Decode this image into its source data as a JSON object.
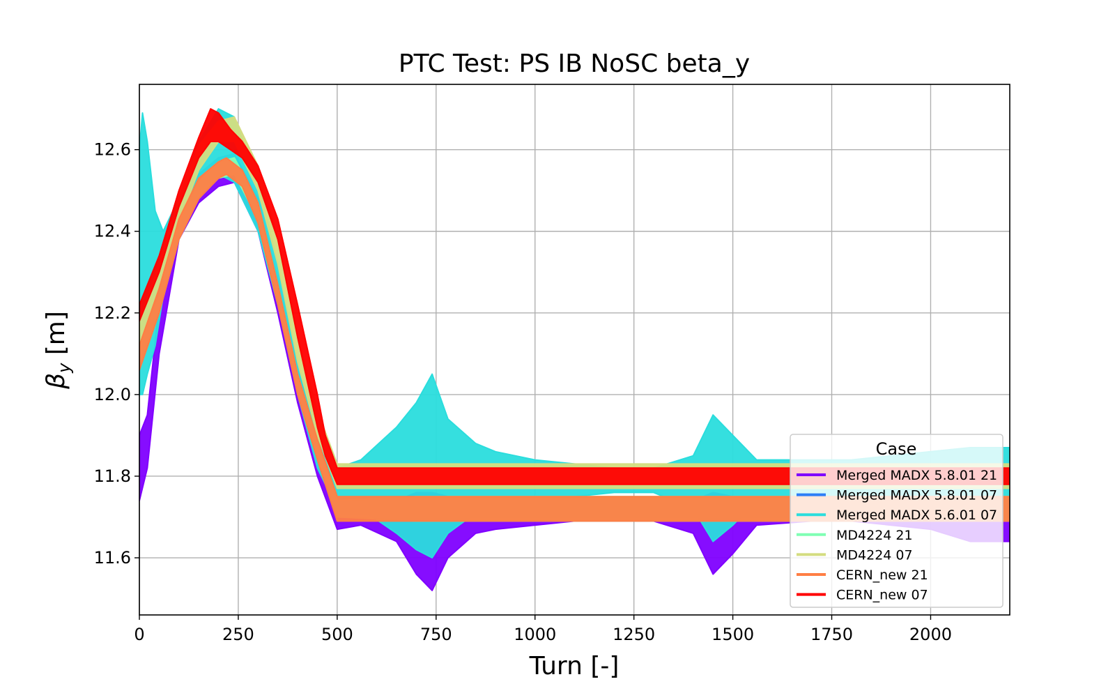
{
  "chart_data": {
    "type": "line",
    "title": "PTC Test: PS IB NoSC beta_y",
    "xlabel": "Turn [-]",
    "ylabel_main": "β",
    "ylabel_sub": "y",
    "ylabel_unit": " [m]",
    "xlim": [
      0,
      2200
    ],
    "ylim": [
      11.46,
      12.76
    ],
    "xticks": [
      0,
      250,
      500,
      750,
      1000,
      1250,
      1500,
      1750,
      2000
    ],
    "xtick_labels": [
      "0",
      "250",
      "500",
      "750",
      "1000",
      "1250",
      "1500",
      "1750",
      "2000"
    ],
    "yticks": [
      11.6,
      11.8,
      12.0,
      12.2,
      12.4,
      12.6
    ],
    "ytick_labels": [
      "11.6",
      "11.8",
      "12.0",
      "12.2",
      "12.4",
      "12.6"
    ],
    "grid": true,
    "legend": {
      "title": "Case",
      "placement": "lower-right"
    },
    "series": [
      {
        "name": "Merged MADX 5.8.01 21",
        "color": "#8000ff",
        "x": [
          0,
          20,
          50,
          100,
          150,
          200,
          240,
          300,
          350,
          400,
          450,
          500,
          560,
          650,
          700,
          740,
          780,
          850,
          900,
          1000,
          1100,
          1200,
          1300,
          1400,
          1450,
          1500,
          1560,
          1700,
          1800,
          1900,
          2000,
          2100,
          2200
        ],
        "lower": [
          11.74,
          11.82,
          12.1,
          12.38,
          12.47,
          12.51,
          12.52,
          12.4,
          12.2,
          11.98,
          11.8,
          11.67,
          11.68,
          11.64,
          11.56,
          11.52,
          11.6,
          11.66,
          11.67,
          11.68,
          11.69,
          11.69,
          11.69,
          11.66,
          11.56,
          11.61,
          11.68,
          11.69,
          11.69,
          11.68,
          11.67,
          11.64,
          11.64
        ],
        "upper": [
          11.9,
          11.95,
          12.22,
          12.44,
          12.52,
          12.56,
          12.58,
          12.46,
          12.26,
          12.04,
          11.86,
          11.72,
          11.73,
          11.74,
          11.76,
          11.76,
          11.75,
          11.74,
          11.73,
          11.73,
          11.73,
          11.73,
          11.73,
          11.74,
          11.76,
          11.75,
          11.73,
          11.73,
          11.73,
          11.72,
          11.72,
          11.72,
          11.72
        ]
      },
      {
        "name": "Merged MADX 5.8.01 07",
        "color": "#2c7ef7",
        "x": [
          0,
          50,
          100,
          150,
          200,
          240,
          300,
          350,
          400,
          450,
          500,
          700,
          1000,
          1300,
          1600,
          1900,
          2200
        ],
        "lower": [
          12.08,
          12.22,
          12.4,
          12.5,
          12.54,
          12.55,
          12.44,
          12.24,
          12.02,
          11.86,
          11.71,
          11.7,
          11.7,
          11.7,
          11.7,
          11.7,
          11.7
        ],
        "upper": [
          12.12,
          12.26,
          12.44,
          12.54,
          12.58,
          12.59,
          12.48,
          12.28,
          12.06,
          11.9,
          11.75,
          11.74,
          11.74,
          11.74,
          11.74,
          11.74,
          11.74
        ]
      },
      {
        "name": "Merged MADX 5.6.01 07",
        "color": "#2adddd",
        "x": [
          0,
          8,
          20,
          40,
          60,
          100,
          150,
          200,
          240,
          300,
          350,
          400,
          450,
          500,
          560,
          650,
          700,
          740,
          780,
          850,
          900,
          1000,
          1100,
          1200,
          1300,
          1400,
          1450,
          1500,
          1560,
          1700,
          1800,
          1900,
          2000,
          2100,
          2200
        ],
        "lower": [
          12.0,
          12.0,
          12.05,
          12.12,
          12.24,
          12.4,
          12.52,
          12.54,
          12.52,
          12.4,
          12.22,
          12.0,
          11.82,
          11.72,
          11.72,
          11.66,
          11.62,
          11.6,
          11.66,
          11.71,
          11.72,
          11.73,
          11.75,
          11.76,
          11.76,
          11.72,
          11.64,
          11.68,
          11.74,
          11.75,
          11.75,
          11.74,
          11.74,
          11.73,
          11.73
        ],
        "upper": [
          12.6,
          12.69,
          12.62,
          12.45,
          12.4,
          12.48,
          12.62,
          12.7,
          12.68,
          12.52,
          12.32,
          12.08,
          11.92,
          11.82,
          11.84,
          11.92,
          11.98,
          12.05,
          11.94,
          11.88,
          11.86,
          11.84,
          11.83,
          11.82,
          11.82,
          11.85,
          11.95,
          11.9,
          11.84,
          11.84,
          11.84,
          11.85,
          11.86,
          11.87,
          11.87
        ]
      },
      {
        "name": "MD4224 21",
        "color": "#80ffb4",
        "x": [
          0,
          50,
          100,
          150,
          200,
          240,
          300,
          350,
          400,
          450,
          500,
          700,
          1000,
          1300,
          1600,
          1900,
          2200
        ],
        "lower": [
          12.08,
          12.2,
          12.38,
          12.48,
          12.53,
          12.54,
          12.43,
          12.23,
          12.01,
          11.85,
          11.7,
          11.69,
          11.69,
          11.69,
          11.69,
          11.69,
          11.69
        ],
        "upper": [
          12.12,
          12.24,
          12.42,
          12.52,
          12.57,
          12.58,
          12.47,
          12.27,
          12.05,
          11.89,
          11.74,
          11.75,
          11.75,
          11.75,
          11.75,
          11.75,
          11.75
        ]
      },
      {
        "name": "MD4224 07",
        "color": "#d4dd80",
        "x": [
          0,
          50,
          100,
          150,
          200,
          240,
          300,
          350,
          400,
          450,
          500,
          700,
          1000,
          1300,
          1600,
          1900,
          2200
        ],
        "lower": [
          12.12,
          12.26,
          12.42,
          12.55,
          12.62,
          12.62,
          12.5,
          12.32,
          12.08,
          11.9,
          11.77,
          11.77,
          11.77,
          11.77,
          11.77,
          11.77,
          11.77
        ],
        "upper": [
          12.18,
          12.32,
          12.48,
          12.61,
          12.67,
          12.68,
          12.56,
          12.38,
          12.14,
          11.96,
          11.83,
          11.83,
          11.83,
          11.83,
          11.83,
          11.83,
          11.83
        ]
      },
      {
        "name": "CERN_new 21",
        "color": "#ff7e44",
        "x": [
          0,
          50,
          100,
          150,
          200,
          220,
          260,
          300,
          350,
          400,
          450,
          500,
          700,
          1000,
          1300,
          1600,
          1900,
          2200
        ],
        "lower": [
          12.06,
          12.2,
          12.38,
          12.48,
          12.53,
          12.54,
          12.51,
          12.42,
          12.22,
          12.0,
          11.84,
          11.69,
          11.69,
          11.69,
          11.69,
          11.69,
          11.69,
          11.69
        ],
        "upper": [
          12.12,
          12.26,
          12.43,
          12.53,
          12.57,
          12.58,
          12.55,
          12.47,
          12.27,
          12.05,
          11.89,
          11.75,
          11.75,
          11.75,
          11.75,
          11.75,
          11.75,
          11.75
        ]
      },
      {
        "name": "CERN_new 07",
        "color": "#ff0000",
        "x": [
          0,
          50,
          100,
          150,
          180,
          200,
          230,
          260,
          300,
          350,
          400,
          450,
          470,
          500,
          700,
          1000,
          1300,
          1600,
          1900,
          2200
        ],
        "lower": [
          12.18,
          12.3,
          12.46,
          12.58,
          12.62,
          12.62,
          12.6,
          12.58,
          12.52,
          12.38,
          12.14,
          11.92,
          11.85,
          11.78,
          11.78,
          11.78,
          11.78,
          11.78,
          11.78,
          11.78
        ],
        "upper": [
          12.22,
          12.34,
          12.5,
          12.63,
          12.7,
          12.69,
          12.65,
          12.62,
          12.56,
          12.43,
          12.22,
          12.0,
          11.9,
          11.82,
          11.82,
          11.82,
          11.82,
          11.82,
          11.82,
          11.82
        ]
      }
    ]
  }
}
